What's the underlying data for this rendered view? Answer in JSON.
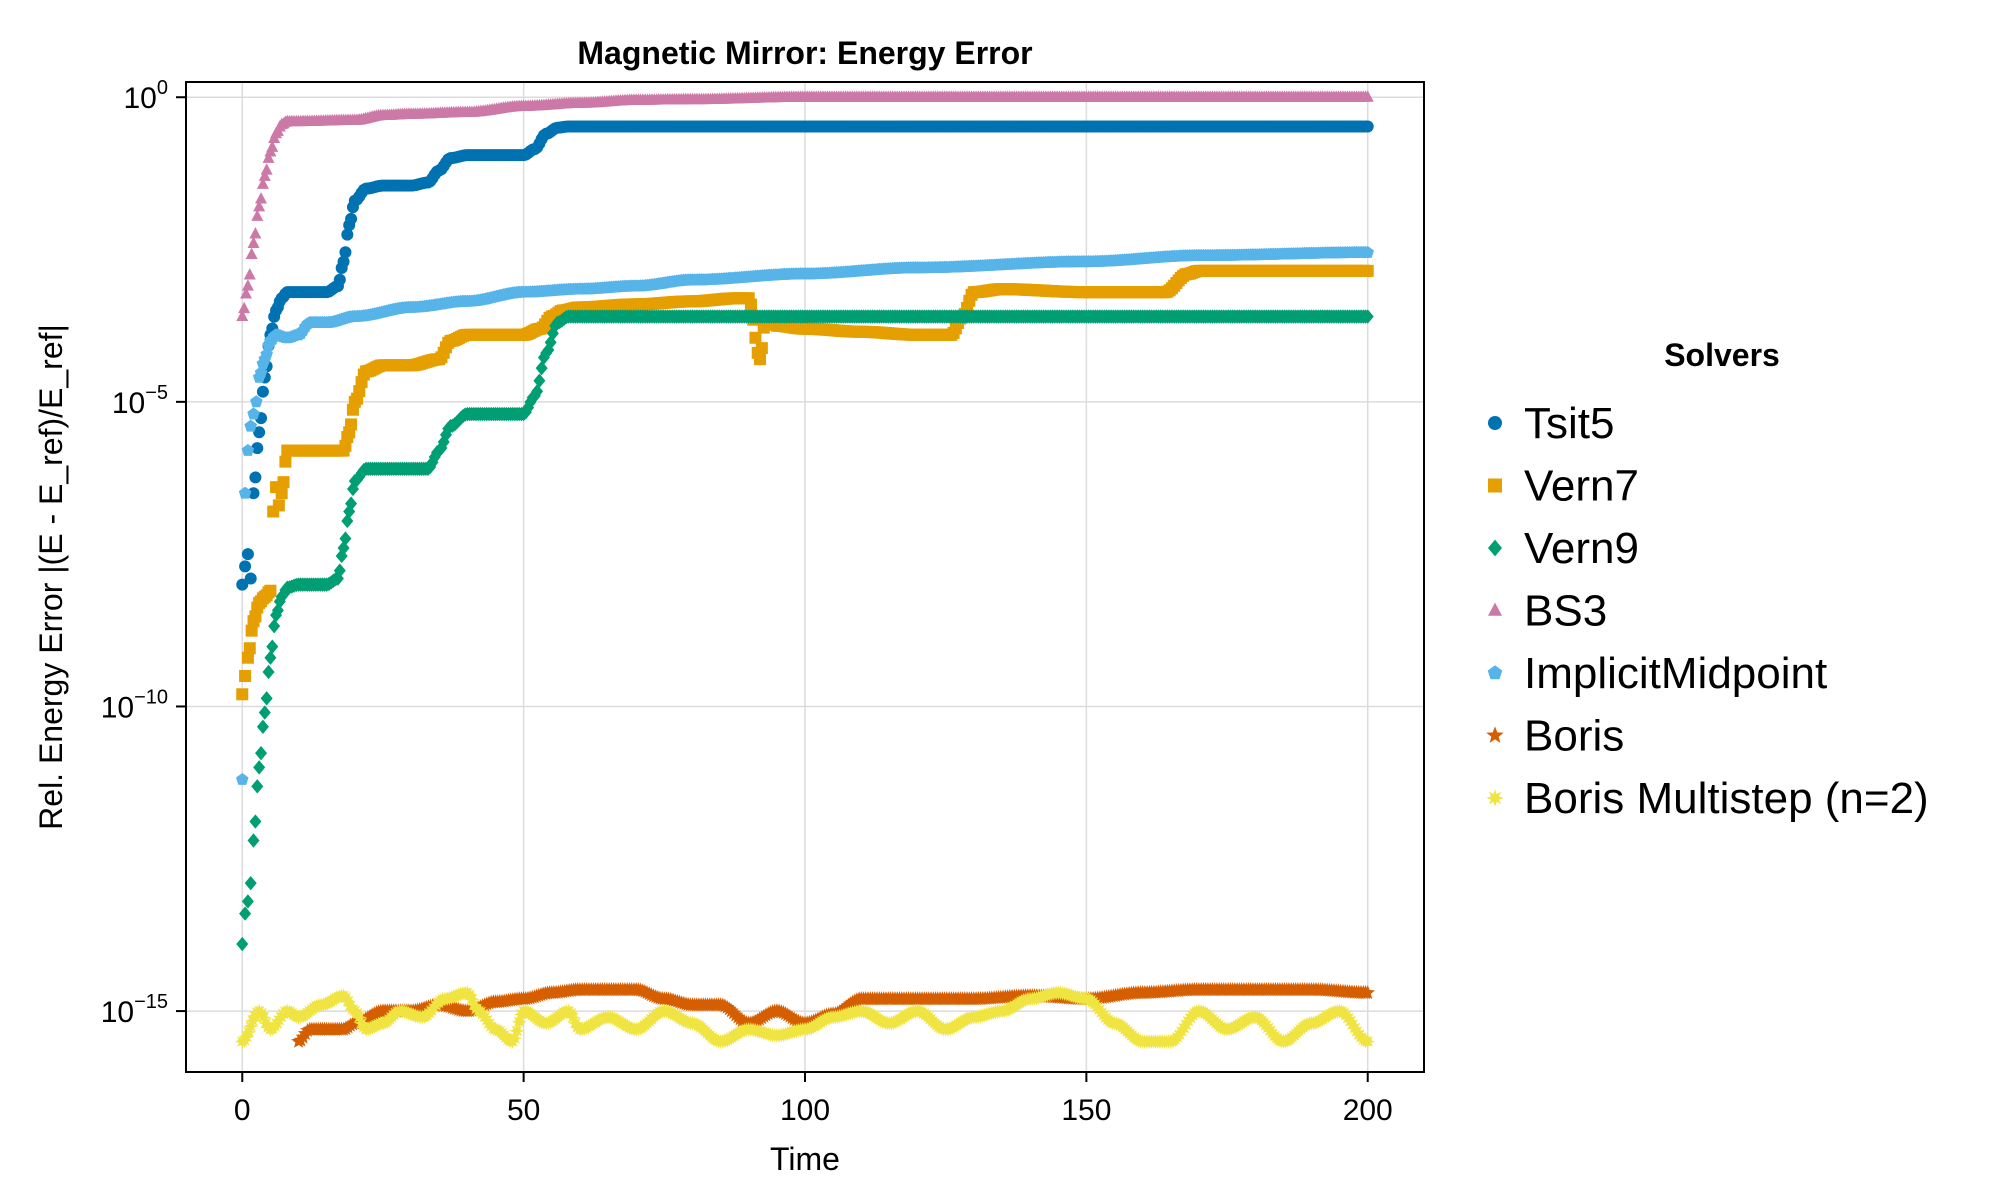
{
  "chart_data": {
    "type": "scatter",
    "title": "Magnetic Mirror: Energy Error",
    "xlabel": "Time",
    "ylabel": "Rel. Energy Error |(E - E_ref)/E_ref|",
    "yscale": "log10",
    "xlim": [
      -10,
      210
    ],
    "ylim_exponent": [
      -16,
      0.25
    ],
    "x_ticks": [
      0,
      50,
      100,
      150,
      200
    ],
    "y_ticks": [
      {
        "exponent": 0,
        "base": "10",
        "sup": "0"
      },
      {
        "exponent": -5,
        "base": "10",
        "sup": "−5"
      },
      {
        "exponent": -10,
        "base": "10",
        "sup": "−10"
      },
      {
        "exponent": -15,
        "base": "10",
        "sup": "−15"
      }
    ],
    "grid": true,
    "legend_title": "Solvers",
    "legend_position": "right",
    "series": [
      {
        "name": "Tsit5",
        "color": "#0072b2",
        "marker": "circle",
        "points_log10": [
          [
            0,
            -8.0
          ],
          [
            0.5,
            -7.7
          ],
          [
            1,
            -7.5
          ],
          [
            1.5,
            -7.9
          ],
          [
            2,
            -6.5
          ],
          [
            3,
            -5.5
          ],
          [
            4,
            -4.6
          ],
          [
            5,
            -3.9
          ],
          [
            6,
            -3.5
          ],
          [
            7,
            -3.3
          ],
          [
            8,
            -3.2
          ],
          [
            10,
            -3.2
          ],
          [
            15,
            -3.2
          ],
          [
            17,
            -3.1
          ],
          [
            18,
            -2.7
          ],
          [
            19,
            -2.1
          ],
          [
            20,
            -1.7
          ],
          [
            22,
            -1.5
          ],
          [
            25,
            -1.45
          ],
          [
            30,
            -1.45
          ],
          [
            33,
            -1.4
          ],
          [
            35,
            -1.2
          ],
          [
            37,
            -1.0
          ],
          [
            40,
            -0.95
          ],
          [
            45,
            -0.95
          ],
          [
            50,
            -0.95
          ],
          [
            52,
            -0.85
          ],
          [
            54,
            -0.6
          ],
          [
            56,
            -0.5
          ],
          [
            58,
            -0.48
          ],
          [
            70,
            -0.48
          ],
          [
            100,
            -0.48
          ],
          [
            150,
            -0.48
          ],
          [
            200,
            -0.48
          ]
        ]
      },
      {
        "name": "Vern7",
        "color": "#e69f00",
        "marker": "square",
        "points_log10": [
          [
            0,
            -9.8
          ],
          [
            0.5,
            -9.5
          ],
          [
            1,
            -9.2
          ],
          [
            2,
            -8.6
          ],
          [
            3,
            -8.3
          ],
          [
            4,
            -8.2
          ],
          [
            5,
            -8.1
          ],
          [
            5.5,
            -6.8
          ],
          [
            6,
            -6.4
          ],
          [
            6.5,
            -6.7
          ],
          [
            7,
            -6.5
          ],
          [
            8,
            -5.8
          ],
          [
            10,
            -5.8
          ],
          [
            15,
            -5.8
          ],
          [
            18,
            -5.8
          ],
          [
            19,
            -5.5
          ],
          [
            20,
            -5.0
          ],
          [
            22,
            -4.5
          ],
          [
            25,
            -4.4
          ],
          [
            30,
            -4.4
          ],
          [
            35,
            -4.3
          ],
          [
            37,
            -4.0
          ],
          [
            40,
            -3.9
          ],
          [
            45,
            -3.9
          ],
          [
            50,
            -3.9
          ],
          [
            53,
            -3.8
          ],
          [
            55,
            -3.6
          ],
          [
            57,
            -3.5
          ],
          [
            60,
            -3.45
          ],
          [
            70,
            -3.4
          ],
          [
            80,
            -3.35
          ],
          [
            88,
            -3.3
          ],
          [
            90,
            -3.3
          ],
          [
            92,
            -4.3
          ],
          [
            93,
            -3.6
          ],
          [
            95,
            -3.75
          ],
          [
            100,
            -3.8
          ],
          [
            110,
            -3.85
          ],
          [
            120,
            -3.9
          ],
          [
            126,
            -3.9
          ],
          [
            128,
            -3.6
          ],
          [
            130,
            -3.2
          ],
          [
            135,
            -3.15
          ],
          [
            150,
            -3.2
          ],
          [
            160,
            -3.2
          ],
          [
            164,
            -3.2
          ],
          [
            168,
            -2.9
          ],
          [
            170,
            -2.85
          ],
          [
            180,
            -2.85
          ],
          [
            200,
            -2.85
          ]
        ]
      },
      {
        "name": "Vern9",
        "color": "#009e73",
        "marker": "diamond",
        "points_log10": [
          [
            0,
            -13.9
          ],
          [
            0.5,
            -13.4
          ],
          [
            1,
            -13.2
          ],
          [
            1.5,
            -12.9
          ],
          [
            2,
            -12.2
          ],
          [
            3,
            -11.0
          ],
          [
            4,
            -10.1
          ],
          [
            5,
            -9.2
          ],
          [
            6,
            -8.5
          ],
          [
            7,
            -8.2
          ],
          [
            8,
            -8.05
          ],
          [
            10,
            -8.0
          ],
          [
            15,
            -8.0
          ],
          [
            17,
            -7.9
          ],
          [
            18,
            -7.4
          ],
          [
            19,
            -6.8
          ],
          [
            20,
            -6.3
          ],
          [
            22,
            -6.1
          ],
          [
            25,
            -6.1
          ],
          [
            30,
            -6.1
          ],
          [
            33,
            -6.1
          ],
          [
            35,
            -5.8
          ],
          [
            37,
            -5.4
          ],
          [
            40,
            -5.2
          ],
          [
            45,
            -5.2
          ],
          [
            50,
            -5.2
          ],
          [
            52,
            -4.9
          ],
          [
            54,
            -4.2
          ],
          [
            56,
            -3.7
          ],
          [
            58,
            -3.6
          ],
          [
            70,
            -3.6
          ],
          [
            100,
            -3.6
          ],
          [
            150,
            -3.6
          ],
          [
            200,
            -3.6
          ]
        ]
      },
      {
        "name": "BS3",
        "color": "#cc79a7",
        "marker": "triangle",
        "points_log10": [
          [
            0,
            -3.6
          ],
          [
            1,
            -3.1
          ],
          [
            2,
            -2.4
          ],
          [
            3,
            -1.8
          ],
          [
            4,
            -1.3
          ],
          [
            5,
            -0.9
          ],
          [
            6,
            -0.6
          ],
          [
            7,
            -0.45
          ],
          [
            8,
            -0.4
          ],
          [
            10,
            -0.4
          ],
          [
            20,
            -0.38
          ],
          [
            25,
            -0.3
          ],
          [
            30,
            -0.28
          ],
          [
            40,
            -0.25
          ],
          [
            50,
            -0.15
          ],
          [
            60,
            -0.1
          ],
          [
            70,
            -0.05
          ],
          [
            80,
            -0.04
          ],
          [
            100,
            0.0
          ],
          [
            120,
            0.0
          ],
          [
            150,
            0.0
          ],
          [
            200,
            0.0
          ]
        ]
      },
      {
        "name": "ImplicitMidpoint",
        "color": "#56b4e9",
        "marker": "pentagon",
        "points_log10": [
          [
            0,
            -11.2
          ],
          [
            0.5,
            -6.5
          ],
          [
            1,
            -5.8
          ],
          [
            1.5,
            -5.4
          ],
          [
            2,
            -5.2
          ],
          [
            2.5,
            -5.0
          ],
          [
            3,
            -4.6
          ],
          [
            4,
            -4.3
          ],
          [
            5,
            -4.0
          ],
          [
            6,
            -3.9
          ],
          [
            8,
            -3.95
          ],
          [
            10,
            -3.9
          ],
          [
            12,
            -3.7
          ],
          [
            15,
            -3.7
          ],
          [
            20,
            -3.6
          ],
          [
            30,
            -3.45
          ],
          [
            40,
            -3.35
          ],
          [
            50,
            -3.2
          ],
          [
            60,
            -3.15
          ],
          [
            70,
            -3.1
          ],
          [
            80,
            -3.0
          ],
          [
            100,
            -2.9
          ],
          [
            120,
            -2.8
          ],
          [
            150,
            -2.7
          ],
          [
            170,
            -2.6
          ],
          [
            200,
            -2.55
          ]
        ]
      },
      {
        "name": "Boris",
        "color": "#d55e00",
        "marker": "star",
        "points_log10": [
          [
            10,
            -15.5
          ],
          [
            12,
            -15.3
          ],
          [
            15,
            -15.3
          ],
          [
            18,
            -15.3
          ],
          [
            20,
            -15.2
          ],
          [
            25,
            -15.0
          ],
          [
            30,
            -15.0
          ],
          [
            35,
            -14.9
          ],
          [
            40,
            -15.0
          ],
          [
            45,
            -14.85
          ],
          [
            50,
            -14.8
          ],
          [
            55,
            -14.7
          ],
          [
            60,
            -14.65
          ],
          [
            70,
            -14.65
          ],
          [
            75,
            -14.8
          ],
          [
            80,
            -14.9
          ],
          [
            85,
            -14.9
          ],
          [
            90,
            -15.2
          ],
          [
            95,
            -15.0
          ],
          [
            100,
            -15.2
          ],
          [
            105,
            -15.05
          ],
          [
            110,
            -14.8
          ],
          [
            120,
            -14.8
          ],
          [
            130,
            -14.8
          ],
          [
            140,
            -14.75
          ],
          [
            150,
            -14.8
          ],
          [
            160,
            -14.7
          ],
          [
            170,
            -14.65
          ],
          [
            180,
            -14.65
          ],
          [
            190,
            -14.65
          ],
          [
            200,
            -14.7
          ]
        ]
      },
      {
        "name": "Boris Multistep (n=2)",
        "color": "#f0e442",
        "marker": "asterisk",
        "points_log10": [
          [
            0,
            -15.5
          ],
          [
            3,
            -15.0
          ],
          [
            5,
            -15.3
          ],
          [
            8,
            -15.0
          ],
          [
            10,
            -15.1
          ],
          [
            14,
            -14.9
          ],
          [
            18,
            -14.75
          ],
          [
            20,
            -15.0
          ],
          [
            22,
            -15.3
          ],
          [
            25,
            -15.2
          ],
          [
            28,
            -15.0
          ],
          [
            32,
            -15.1
          ],
          [
            36,
            -14.8
          ],
          [
            40,
            -14.7
          ],
          [
            42,
            -15.0
          ],
          [
            45,
            -15.3
          ],
          [
            48,
            -15.5
          ],
          [
            50,
            -15.0
          ],
          [
            54,
            -15.2
          ],
          [
            58,
            -15.0
          ],
          [
            60,
            -15.3
          ],
          [
            65,
            -15.1
          ],
          [
            70,
            -15.3
          ],
          [
            75,
            -15.0
          ],
          [
            80,
            -15.2
          ],
          [
            85,
            -15.5
          ],
          [
            90,
            -15.3
          ],
          [
            95,
            -15.4
          ],
          [
            100,
            -15.3
          ],
          [
            105,
            -15.1
          ],
          [
            110,
            -15.0
          ],
          [
            115,
            -15.2
          ],
          [
            120,
            -15.0
          ],
          [
            125,
            -15.3
          ],
          [
            130,
            -15.1
          ],
          [
            135,
            -15.0
          ],
          [
            140,
            -14.8
          ],
          [
            145,
            -14.7
          ],
          [
            150,
            -14.8
          ],
          [
            155,
            -15.2
          ],
          [
            160,
            -15.5
          ],
          [
            165,
            -15.5
          ],
          [
            170,
            -15.0
          ],
          [
            175,
            -15.3
          ],
          [
            180,
            -15.1
          ],
          [
            185,
            -15.5
          ],
          [
            190,
            -15.2
          ],
          [
            195,
            -15.0
          ],
          [
            200,
            -15.5
          ]
        ]
      }
    ]
  }
}
